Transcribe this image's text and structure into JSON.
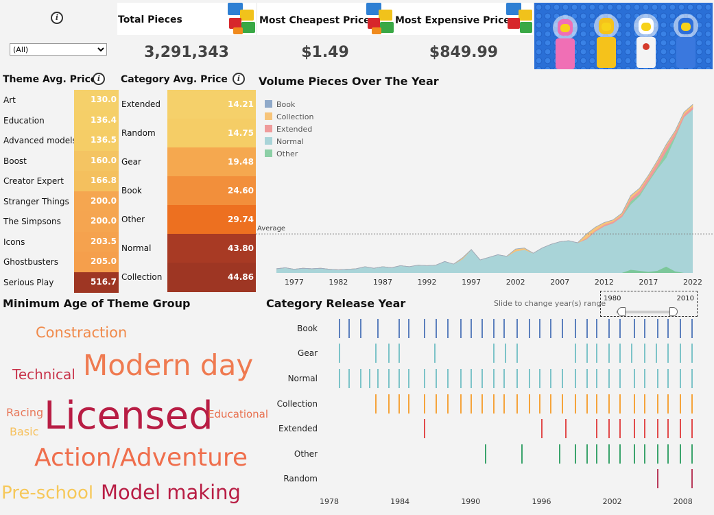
{
  "filter": {
    "selected": "(All)"
  },
  "kpis": {
    "total_pieces": {
      "label": "Total Pieces",
      "value": "3,291,343"
    },
    "cheapest": {
      "label": "Most Cheapest Price",
      "value": "$1.49"
    },
    "expensive": {
      "label": "Most Expensive Price",
      "value": "$849.99"
    }
  },
  "info_icon_text": "i",
  "theme_avg": {
    "title": "Theme Avg. Price",
    "items": [
      {
        "label": "Art",
        "value": "130.0"
      },
      {
        "label": "Education",
        "value": "136.4"
      },
      {
        "label": "Advanced models",
        "value": "136.5"
      },
      {
        "label": "Boost",
        "value": "160.0"
      },
      {
        "label": "Creator Expert",
        "value": "166.8"
      },
      {
        "label": "Stranger Things",
        "value": "200.0"
      },
      {
        "label": "The Simpsons",
        "value": "200.0"
      },
      {
        "label": "Icons",
        "value": "203.5"
      },
      {
        "label": "Ghostbusters",
        "value": "205.0"
      },
      {
        "label": "Serious Play",
        "value": "516.7"
      }
    ],
    "colors": [
      "#f5d06a",
      "#f5cf68",
      "#f5cd66",
      "#f4c462",
      "#f4c05e",
      "#f5a650",
      "#f5a550",
      "#f5a24e",
      "#f59f4c",
      "#9e3623"
    ]
  },
  "category_avg": {
    "title": "Category Avg. Price",
    "items": [
      {
        "label": "Extended",
        "value": "14.21"
      },
      {
        "label": "Random",
        "value": "14.75"
      },
      {
        "label": "Gear",
        "value": "19.48"
      },
      {
        "label": "Book",
        "value": "24.60"
      },
      {
        "label": "Other",
        "value": "29.74"
      },
      {
        "label": "Normal",
        "value": "43.80"
      },
      {
        "label": "Collection",
        "value": "44.86"
      }
    ],
    "colors": [
      "#f5d06a",
      "#f5cd66",
      "#f5a84f",
      "#f28f3b",
      "#ed7020",
      "#a83a24",
      "#9e3623"
    ]
  },
  "volume": {
    "title": "Volume Pieces Over The Year",
    "legend": [
      {
        "name": "Book",
        "color": "#8fa9c9"
      },
      {
        "name": "Collection",
        "color": "#f7c47a"
      },
      {
        "name": "Extended",
        "color": "#ef9b9b"
      },
      {
        "name": "Normal",
        "color": "#a9d4d8"
      },
      {
        "name": "Other",
        "color": "#8ccfa6"
      }
    ],
    "average_label": "Average"
  },
  "wordcloud": {
    "title": "Minimum Age of Theme Group",
    "words": [
      {
        "text": "Constraction",
        "color": "#f08a4b"
      },
      {
        "text": "Modern day",
        "color": "#ef7a50"
      },
      {
        "text": "Technical",
        "color": "#c8344b"
      },
      {
        "text": "Racing",
        "color": "#e8785a"
      },
      {
        "text": "Licensed",
        "color": "#b81d44"
      },
      {
        "text": "Educational",
        "color": "#e86f4d"
      },
      {
        "text": "Basic",
        "color": "#f6c15e"
      },
      {
        "text": "Action/Adventure",
        "color": "#ef6e4c"
      },
      {
        "text": "Pre-school",
        "color": "#f6c85a"
      },
      {
        "text": "Model making",
        "color": "#b81d44"
      }
    ]
  },
  "release": {
    "title": "Category Release Year",
    "slider_hint": "Slide to change year(s) range",
    "slider_min": "1980",
    "slider_max": "2010"
  },
  "chart_data": [
    {
      "type": "area",
      "title": "Volume Pieces Over The Year",
      "x": [
        1975,
        1976,
        1977,
        1978,
        1979,
        1980,
        1981,
        1982,
        1983,
        1984,
        1985,
        1986,
        1987,
        1988,
        1989,
        1990,
        1991,
        1992,
        1993,
        1994,
        1995,
        1996,
        1997,
        1998,
        1999,
        2000,
        2001,
        2002,
        2003,
        2004,
        2005,
        2006,
        2007,
        2008,
        2009,
        2010,
        2011,
        2012,
        2013,
        2014,
        2015,
        2016,
        2017,
        2018,
        2019,
        2020,
        2021,
        2022
      ],
      "xticks": [
        "1977",
        "1982",
        "1987",
        "1992",
        "1997",
        "2002",
        "2007",
        "2012",
        "2017",
        "2022"
      ],
      "series": [
        {
          "name": "Book",
          "values": [
            0,
            0,
            0,
            0,
            0,
            0,
            0,
            0,
            0,
            0,
            0,
            0,
            0,
            0,
            0,
            0,
            0,
            0,
            0,
            0,
            0,
            0,
            0,
            0,
            0,
            0,
            0,
            0,
            0,
            0,
            0,
            0,
            0,
            0,
            0,
            0,
            0,
            0,
            0,
            0,
            0,
            0,
            0,
            0,
            0,
            0,
            0,
            0
          ]
        },
        {
          "name": "Collection",
          "values": [
            0,
            0,
            0,
            0,
            0,
            0,
            0,
            0,
            0,
            0,
            0,
            0,
            0,
            0,
            0,
            0,
            0,
            0,
            0,
            0,
            0,
            2000,
            0,
            0,
            0,
            0,
            0,
            4000,
            3000,
            0,
            0,
            0,
            0,
            0,
            0,
            8000,
            6000,
            4000,
            3000,
            3000,
            5000,
            4000,
            3000,
            3000,
            3000,
            3000,
            4000,
            4000
          ]
        },
        {
          "name": "Extended",
          "values": [
            0,
            0,
            0,
            0,
            0,
            0,
            0,
            0,
            0,
            0,
            0,
            0,
            0,
            0,
            0,
            0,
            0,
            0,
            0,
            0,
            0,
            0,
            0,
            0,
            0,
            0,
            0,
            0,
            0,
            0,
            0,
            0,
            0,
            0,
            0,
            2000,
            2000,
            3000,
            3000,
            4000,
            6000,
            7000,
            8000,
            9000,
            10000,
            7000,
            5000,
            5000
          ]
        },
        {
          "name": "Normal",
          "values": [
            8000,
            10000,
            7000,
            9000,
            8000,
            9000,
            7000,
            6000,
            7000,
            8000,
            12000,
            9000,
            12000,
            10000,
            14000,
            12000,
            15000,
            14000,
            15000,
            22000,
            17000,
            27000,
            45000,
            25000,
            30000,
            35000,
            32000,
            42000,
            45000,
            38000,
            48000,
            55000,
            60000,
            62000,
            58000,
            65000,
            80000,
            90000,
            96000,
            108000,
            132000,
            148000,
            175000,
            200000,
            222000,
            260000,
            300000,
            315000
          ]
        },
        {
          "name": "Other",
          "values": [
            0,
            0,
            0,
            0,
            0,
            0,
            0,
            0,
            0,
            0,
            0,
            0,
            0,
            0,
            0,
            0,
            0,
            0,
            0,
            0,
            0,
            0,
            0,
            0,
            0,
            0,
            0,
            0,
            0,
            0,
            0,
            0,
            0,
            0,
            0,
            0,
            0,
            0,
            0,
            0,
            6000,
            4000,
            2000,
            4000,
            12000,
            3000,
            0,
            0
          ]
        }
      ],
      "average": 75000,
      "ylim": [
        0,
        335000
      ],
      "grid": false,
      "legend": "top-left"
    },
    {
      "type": "scatter",
      "title": "Category Release Year",
      "rows": [
        "Book",
        "Gear",
        "Normal",
        "Collection",
        "Extended",
        "Other",
        "Random"
      ],
      "xticks": [
        "1978",
        "1984",
        "1990",
        "1996",
        "2002",
        "2008"
      ],
      "xlim": [
        1978,
        2009
      ],
      "colors": {
        "Book": "#5b7fbd",
        "Gear": "#7cc3c8",
        "Normal": "#7cc3c8",
        "Collection": "#f5a33a",
        "Extended": "#e14a4a",
        "Other": "#3aa36b",
        "Random": "#b83a5a"
      },
      "points": {
        "Book": [
          1978.8,
          1979.6,
          1980.6,
          1982.1,
          1983.9,
          1984.7,
          1986.0,
          1987.0,
          1988.0,
          1989.1,
          1990.0,
          1990.9,
          1991.9,
          1992.8,
          1993.9,
          1994.9,
          1995.8,
          1996.7,
          1997.7,
          1998.8,
          1999.8,
          2000.6,
          2001.7,
          2002.6,
          2003.8,
          2004.7,
          2005.8,
          2006.7,
          2007.7,
          2008.7
        ],
        "Gear": [
          1978.8,
          1981.9,
          1983.0,
          1983.9,
          1986.9,
          1991.9,
          1992.9,
          1993.9,
          1998.8,
          1999.8,
          2000.6,
          2001.7,
          2002.6,
          2003.6,
          2004.7,
          2005.7,
          2006.7,
          2007.7,
          2008.7
        ],
        "Normal": [
          1978.8,
          1979.6,
          1980.6,
          1981.4,
          1982.1,
          1983.0,
          1983.9,
          1984.7,
          1986.0,
          1987.0,
          1988.0,
          1989.1,
          1990.0,
          1990.9,
          1991.9,
          1992.8,
          1993.9,
          1994.9,
          1995.8,
          1996.7,
          1997.7,
          1998.8,
          1999.8,
          2000.6,
          2001.7,
          2002.6,
          2003.8,
          2004.7,
          2005.8,
          2006.7,
          2007.7,
          2008.7
        ],
        "Collection": [
          1981.9,
          1983.0,
          1983.9,
          1984.7,
          1986.0,
          1987.0,
          1988.0,
          1989.1,
          1990.0,
          1990.9,
          1991.9,
          1992.8,
          1993.9,
          1994.9,
          1995.8,
          1996.7,
          1997.7,
          1998.8,
          1999.8,
          2000.6,
          2001.7,
          2002.6,
          2003.8,
          2004.7,
          2005.8,
          2006.7,
          2007.7,
          2008.7
        ],
        "Extended": [
          1986.0,
          1996.0,
          1998.0,
          2000.6,
          2001.7,
          2002.6,
          2003.8,
          2004.7,
          2005.8,
          2006.7,
          2007.7,
          2008.7
        ],
        "Other": [
          1991.2,
          1994.3,
          1997.5,
          1998.8,
          1999.8,
          2000.6,
          2001.7,
          2002.6,
          2003.8,
          2004.7,
          2005.8,
          2006.7,
          2007.7,
          2008.7
        ],
        "Random": [
          2005.8,
          2008.7
        ]
      },
      "grid": false
    }
  ]
}
